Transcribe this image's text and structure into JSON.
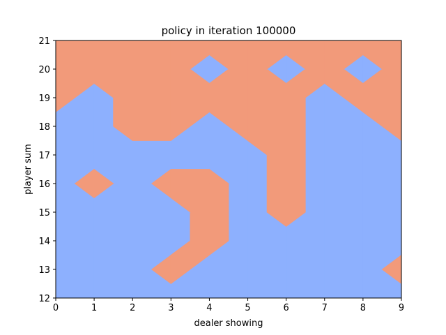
{
  "chart_data": {
    "type": "heatmap",
    "title": "policy in iteration 100000",
    "xlabel": "dealer showing",
    "ylabel": "player sum",
    "xlim": [
      0,
      9
    ],
    "ylim": [
      12,
      21
    ],
    "x_ticks": [
      "0",
      "1",
      "2",
      "3",
      "4",
      "5",
      "6",
      "7",
      "8",
      "9"
    ],
    "y_ticks": [
      "12",
      "13",
      "14",
      "15",
      "16",
      "17",
      "18",
      "19",
      "20",
      "21"
    ],
    "x": [
      0,
      1,
      2,
      3,
      4,
      5,
      6,
      7,
      8,
      9
    ],
    "y": [
      12,
      13,
      14,
      15,
      16,
      17,
      18,
      19,
      20,
      21
    ],
    "colors": {
      "0": "#8db0fe",
      "1": "#f29a7a"
    },
    "z": [
      [
        0,
        0,
        0,
        0,
        0,
        0,
        0,
        0,
        0,
        0
      ],
      [
        0,
        0,
        0,
        1,
        0,
        0,
        0,
        0,
        0,
        1
      ],
      [
        0,
        0,
        0,
        0,
        1,
        0,
        0,
        0,
        0,
        0
      ],
      [
        0,
        0,
        0,
        0,
        1,
        0,
        1,
        0,
        0,
        0
      ],
      [
        0,
        1,
        0,
        1,
        1,
        0,
        1,
        0,
        0,
        0
      ],
      [
        0,
        0,
        0,
        0,
        0,
        0,
        1,
        0,
        0,
        0
      ],
      [
        0,
        0,
        1,
        1,
        0,
        1,
        1,
        0,
        0,
        1
      ],
      [
        1,
        0,
        1,
        1,
        1,
        1,
        1,
        0,
        1,
        1
      ],
      [
        1,
        1,
        1,
        1,
        0,
        1,
        0,
        1,
        0,
        1
      ],
      [
        1,
        1,
        1,
        1,
        1,
        1,
        1,
        1,
        1,
        1
      ]
    ]
  }
}
